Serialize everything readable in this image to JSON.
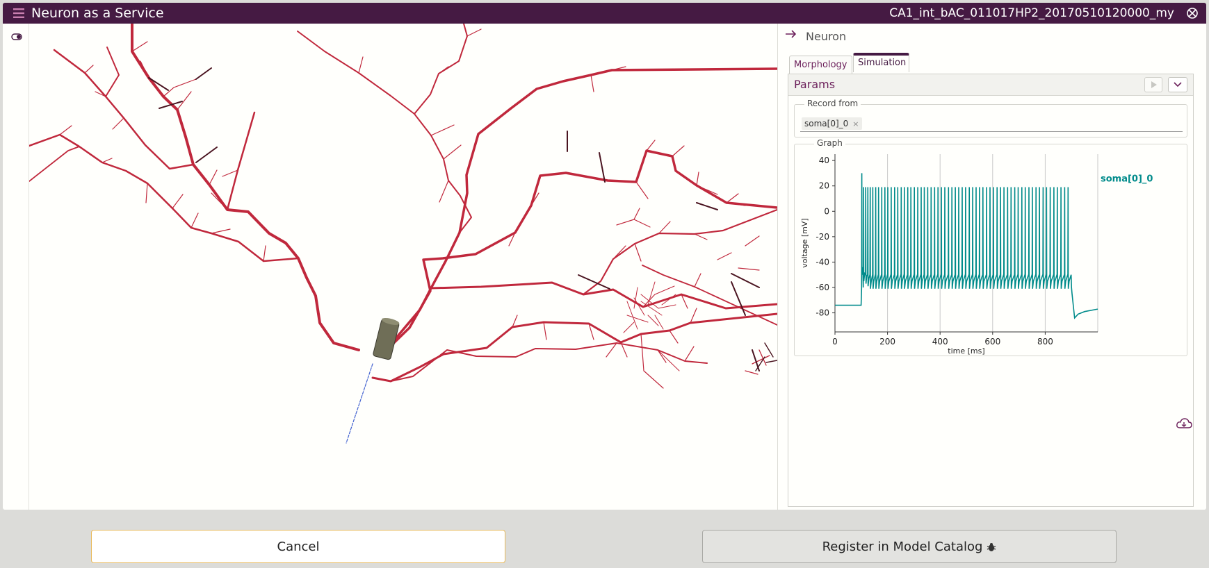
{
  "app": {
    "title": "Neuron as a Service",
    "model_name": "CA1_int_bAC_011017HP2_20170510120000_my"
  },
  "panel": {
    "title": "Neuron",
    "tabs": [
      {
        "label": "Morphology"
      },
      {
        "label": "Simulation"
      }
    ],
    "active_tab": "Simulation",
    "params": {
      "title": "Params"
    },
    "record": {
      "label": "Record from",
      "chip": "soma[0]_0",
      "chip_close": "×"
    },
    "graph": {
      "label": "Graph"
    }
  },
  "footer": {
    "cancel_label": "Cancel",
    "register_label": "Register in Model Catalog"
  },
  "colors": {
    "title_bar": "#451a43",
    "accent": "#6b1f5a",
    "trace": "#008b8b",
    "dendrite": "#c0283c",
    "axon": "#4060d0"
  },
  "chart_data": {
    "type": "line",
    "xlabel": "time [ms]",
    "ylabel": "voltage [mV]",
    "xlim": [
      0,
      1000
    ],
    "ylim": [
      -95,
      45
    ],
    "xticks": [
      0,
      200,
      400,
      600,
      800
    ],
    "yticks": [
      40,
      20,
      0,
      -20,
      -40,
      -60,
      -80
    ],
    "grid": "vertical",
    "legend_position": "right",
    "series": [
      {
        "name": "soma[0]_0",
        "color": "#008b8b",
        "rest_mv": -74,
        "stim_on_ms": 100,
        "stim_off_ms": 900,
        "spike_times_ms": [
          102,
          109,
          117,
          125,
          134,
          144,
          155,
          166,
          178,
          190,
          201,
          214,
          227,
          239,
          252,
          264,
          277,
          289,
          302,
          315,
          328,
          340,
          353,
          366,
          379,
          392,
          405,
          418,
          432,
          445,
          458,
          471,
          484,
          497,
          511,
          524,
          537,
          550,
          563,
          577,
          590,
          603,
          617,
          630,
          643,
          657,
          670,
          684,
          697,
          711,
          724,
          738,
          751,
          765,
          778,
          792,
          805,
          819,
          833,
          846,
          860,
          874,
          887
        ],
        "first_peak_mv": 30,
        "peak_mv": 19,
        "trough_mv": -61,
        "post_stim_min_mv": -84,
        "end_mv": -77
      }
    ]
  }
}
